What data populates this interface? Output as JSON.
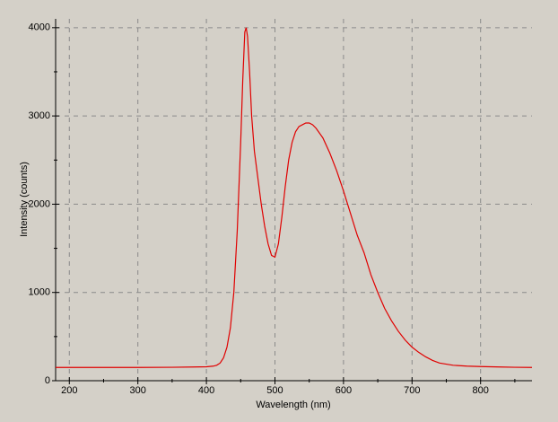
{
  "chart_data": {
    "type": "line",
    "x_label": "Wavelength (nm)",
    "y_label": "Intensity (counts)",
    "x": [
      180,
      200,
      250,
      300,
      350,
      380,
      400,
      410,
      415,
      420,
      425,
      430,
      435,
      440,
      445,
      450,
      453,
      456,
      458,
      460,
      463,
      466,
      470,
      475,
      480,
      485,
      490,
      495,
      500,
      505,
      510,
      515,
      520,
      525,
      530,
      535,
      540,
      545,
      550,
      555,
      560,
      570,
      580,
      590,
      600,
      610,
      620,
      630,
      640,
      650,
      660,
      670,
      680,
      690,
      700,
      710,
      720,
      730,
      740,
      760,
      780,
      800,
      830,
      850,
      875
    ],
    "series": [
      {
        "name": "Intensity",
        "color": "#e00000",
        "values": [
          150,
          150,
          150,
          150,
          152,
          155,
          158,
          165,
          175,
          200,
          260,
          380,
          600,
          1000,
          1700,
          2700,
          3400,
          3950,
          4000,
          3900,
          3500,
          3000,
          2600,
          2300,
          2000,
          1750,
          1550,
          1420,
          1400,
          1550,
          1850,
          2200,
          2500,
          2700,
          2820,
          2880,
          2900,
          2920,
          2920,
          2900,
          2860,
          2750,
          2580,
          2380,
          2150,
          1900,
          1650,
          1450,
          1200,
          1000,
          820,
          680,
          560,
          460,
          380,
          320,
          270,
          230,
          200,
          175,
          165,
          160,
          155,
          152,
          150
        ]
      }
    ],
    "xlim": [
      180,
      875
    ],
    "ylim": [
      0,
      4100
    ],
    "xticks": [
      200,
      300,
      400,
      500,
      600,
      700,
      800
    ],
    "yticks": [
      0,
      1000,
      2000,
      3000,
      4000
    ],
    "xminorticks": [
      250,
      350,
      450,
      550,
      650,
      750,
      850
    ],
    "yminorticks": [
      500,
      1500,
      2500,
      3500
    ],
    "grid": true
  }
}
